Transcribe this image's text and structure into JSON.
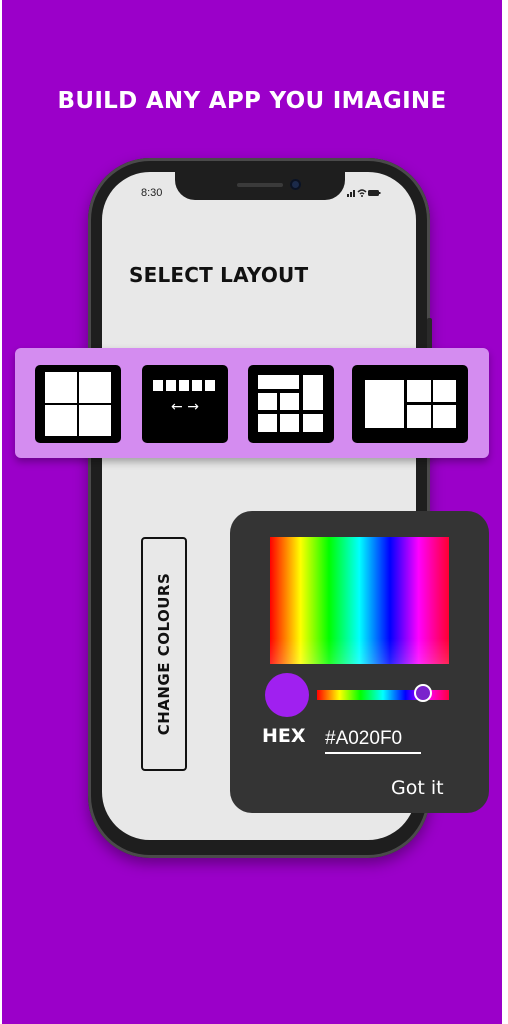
{
  "headline": "BUILD ANY APP YOU IMAGINE",
  "phone": {
    "status_time": "8:30",
    "status_icons": "signal-icon wifi-icon battery-icon"
  },
  "screen": {
    "title": "SELECT LAYOUT",
    "change_colours_label": "CHANGE COLOURS"
  },
  "layouts": [
    {
      "name": "grid-2x2"
    },
    {
      "name": "tabs-scroll",
      "arrows": "← →"
    },
    {
      "name": "dashboard-mixed"
    },
    {
      "name": "wide-split"
    }
  ],
  "color_picker": {
    "selected_color": "#A020F0",
    "hex_label": "HEX",
    "hex_value": "#A020F0",
    "confirm_label": "Got it"
  },
  "colors": {
    "background": "#9b00c9",
    "strip": "#d48cf0",
    "picker_bg": "#343434"
  }
}
